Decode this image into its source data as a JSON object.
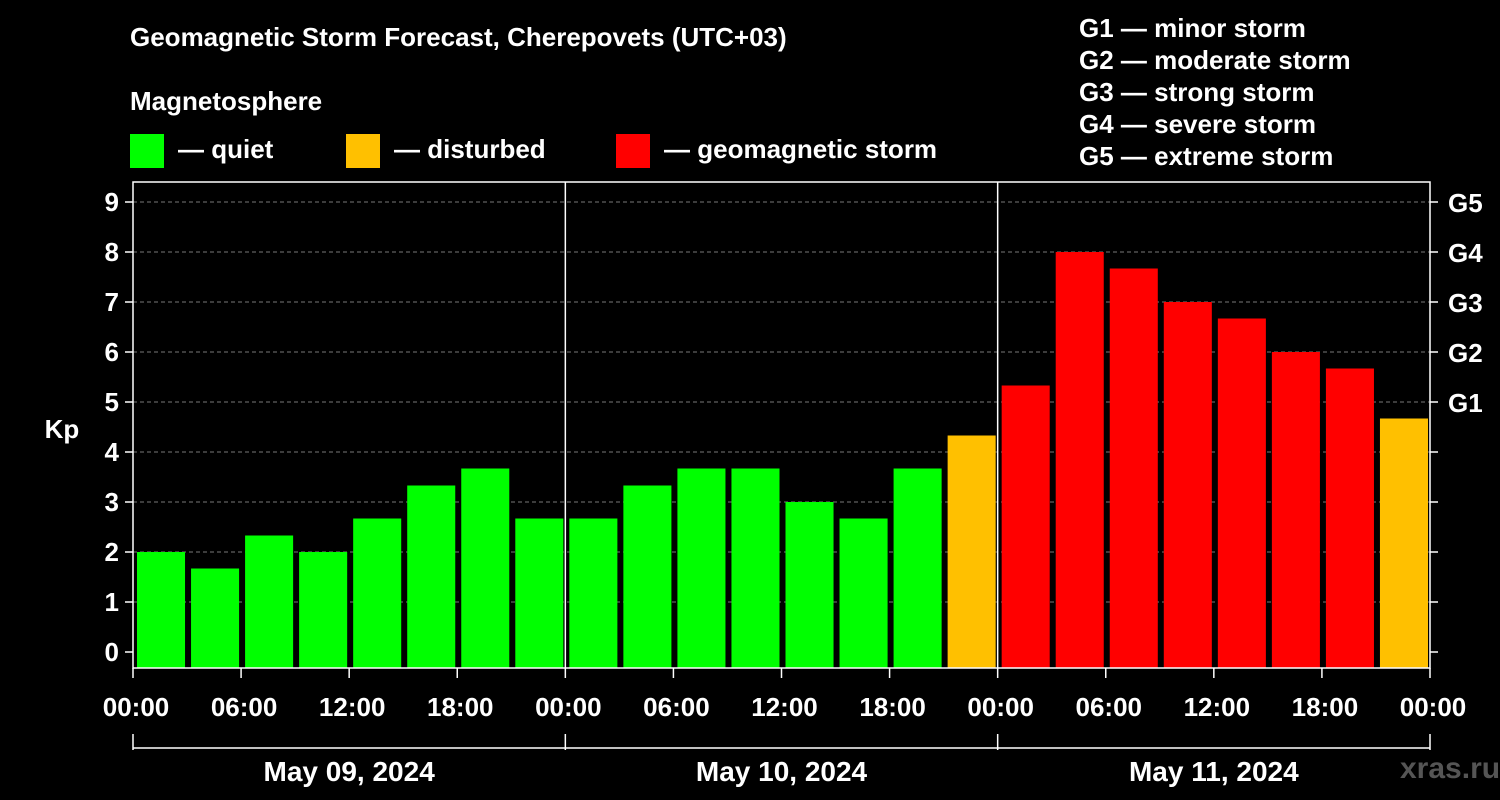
{
  "header": {
    "title": "Geomagnetic Storm Forecast, Cherepovets (UTC+03)",
    "magnetosphere_label": "Magnetosphere"
  },
  "legend": [
    {
      "label": "— quiet",
      "color": "#00ff00"
    },
    {
      "label": "— disturbed",
      "color": "#ffc000"
    },
    {
      "label": "— geomagnetic storm",
      "color": "#ff0000"
    }
  ],
  "storm_scale": [
    "G1 — minor storm",
    "G2 — moderate storm",
    "G3 — strong storm",
    "G4 — severe storm",
    "G5 — extreme storm"
  ],
  "watermark": "xras.ru",
  "chart_data": {
    "type": "bar",
    "ylabel": "Kp",
    "ylim": [
      0,
      9
    ],
    "yticks": [
      "0",
      "1",
      "2",
      "3",
      "4",
      "5",
      "6",
      "7",
      "8",
      "9"
    ],
    "right_axis_labels": [
      {
        "kp": 5,
        "label": "G1"
      },
      {
        "kp": 6,
        "label": "G2"
      },
      {
        "kp": 7,
        "label": "G3"
      },
      {
        "kp": 8,
        "label": "G4"
      },
      {
        "kp": 9,
        "label": "G5"
      }
    ],
    "xtick_labels": [
      "00:00",
      "06:00",
      "12:00",
      "18:00",
      "00:00",
      "06:00",
      "12:00",
      "18:00",
      "00:00",
      "06:00",
      "12:00",
      "18:00",
      "00:00"
    ],
    "days": [
      "May 09, 2024",
      "May 10, 2024",
      "May 11, 2024"
    ],
    "interval_hours": 3,
    "values": [
      2.0,
      1.67,
      2.33,
      2.0,
      2.67,
      3.33,
      3.67,
      2.67,
      2.67,
      3.33,
      3.67,
      3.67,
      3.0,
      2.67,
      3.67,
      4.33,
      5.33,
      8.0,
      7.67,
      7.0,
      6.67,
      6.0,
      5.67,
      4.67
    ],
    "status": [
      "quiet",
      "quiet",
      "quiet",
      "quiet",
      "quiet",
      "quiet",
      "quiet",
      "quiet",
      "quiet",
      "quiet",
      "quiet",
      "quiet",
      "quiet",
      "quiet",
      "quiet",
      "disturbed",
      "storm",
      "storm",
      "storm",
      "storm",
      "storm",
      "storm",
      "storm",
      "disturbed"
    ],
    "colors": {
      "quiet": "#00ff00",
      "disturbed": "#ffc000",
      "storm": "#ff0000"
    }
  }
}
